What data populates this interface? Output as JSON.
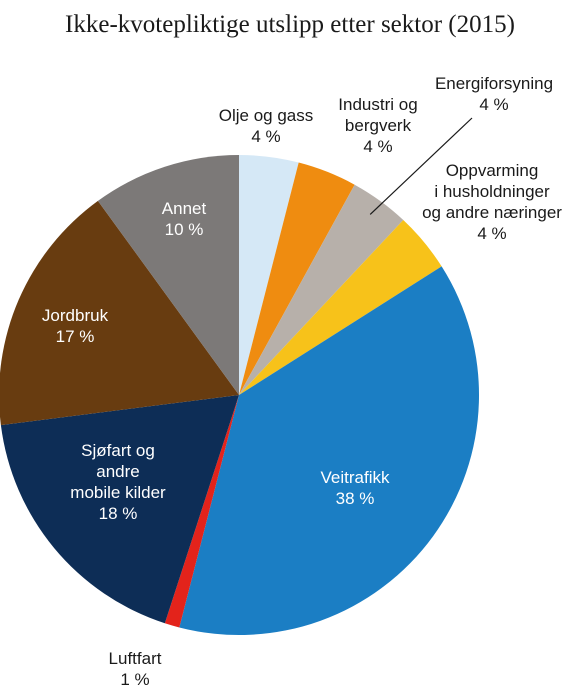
{
  "chart_data": {
    "type": "pie",
    "title": "Ikke-kvotepliktige utslipp etter sektor (2015)",
    "unit": "%",
    "start": "top",
    "direction": "clockwise",
    "slices": [
      {
        "key": "olje",
        "label_lines": [
          "Olje og gass",
          "4 %"
        ],
        "value": 4,
        "color": "#d5e8f6",
        "label_color": "#1a1a1a"
      },
      {
        "key": "industri",
        "label_lines": [
          "Industri og",
          "bergverk",
          "4 %"
        ],
        "value": 4,
        "color": "#ef8c10",
        "label_color": "#1a1a1a"
      },
      {
        "key": "energi",
        "label_lines": [
          "Energiforsyning",
          "4 %"
        ],
        "value": 4,
        "color": "#b7b0aa",
        "label_color": "#1a1a1a"
      },
      {
        "key": "oppvarming",
        "label_lines": [
          "Oppvarming",
          "i husholdninger",
          "og andre næringer",
          "4 %"
        ],
        "value": 4,
        "color": "#f7c21a",
        "label_color": "#1a1a1a"
      },
      {
        "key": "veitrafikk",
        "label_lines": [
          "Veitrafikk",
          "38 %"
        ],
        "value": 38,
        "color": "#1b7ec4",
        "label_color": "#ffffff"
      },
      {
        "key": "luftfart",
        "label_lines": [
          "Luftfart",
          "1 %"
        ],
        "value": 1,
        "color": "#e3231b",
        "label_color": "#1a1a1a"
      },
      {
        "key": "sjofart",
        "label_lines": [
          "Sjøfart og",
          "andre",
          "mobile kilder",
          "18 %"
        ],
        "value": 18,
        "color": "#0d2d56",
        "label_color": "#ffffff"
      },
      {
        "key": "jordbruk",
        "label_lines": [
          "Jordbruk",
          "17 %"
        ],
        "value": 17,
        "color": "#683c10",
        "label_color": "#ffffff"
      },
      {
        "key": "annet",
        "label_lines": [
          "Annet",
          "10 %"
        ],
        "value": 10,
        "color": "#7c7978",
        "label_color": "#ffffff"
      }
    ]
  }
}
